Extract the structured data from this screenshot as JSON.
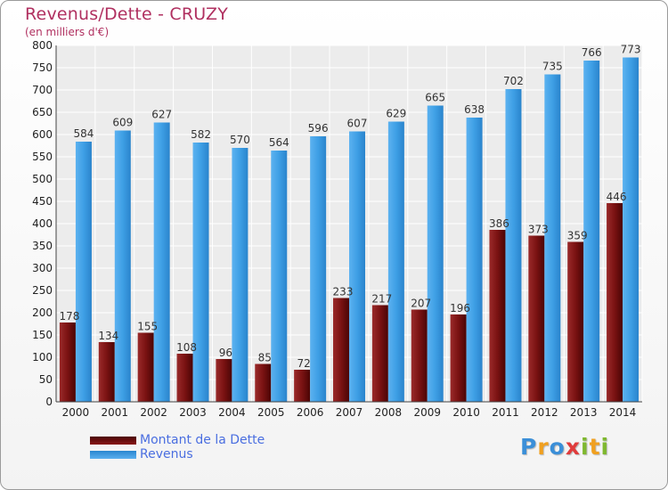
{
  "chart_data": {
    "type": "bar",
    "title": "Revenus/Dette - CRUZY",
    "subtitle": "(en milliers d'€)",
    "categories": [
      "2000",
      "2001",
      "2002",
      "2003",
      "2004",
      "2005",
      "2006",
      "2007",
      "2008",
      "2009",
      "2010",
      "2011",
      "2012",
      "2013",
      "2014"
    ],
    "series": [
      {
        "name": "Montant de la Dette",
        "color": "#7a1010",
        "values": [
          178,
          134,
          155,
          108,
          96,
          85,
          72,
          233,
          217,
          207,
          196,
          386,
          373,
          359,
          446
        ]
      },
      {
        "name": "Revenus",
        "color": "#3d9ee3",
        "values": [
          584,
          609,
          627,
          582,
          570,
          564,
          596,
          607,
          629,
          665,
          638,
          702,
          735,
          766,
          773
        ]
      }
    ],
    "ylim": [
      0,
      800
    ],
    "yticks": [
      0,
      50,
      100,
      150,
      200,
      250,
      300,
      350,
      400,
      450,
      500,
      550,
      600,
      650,
      700,
      750,
      800
    ],
    "grid": true,
    "legend_position": "bottom-left"
  },
  "brand": {
    "text": "Proxiti",
    "letters": [
      {
        "ch": "P",
        "color": "#3b8fd8"
      },
      {
        "ch": "r",
        "color": "#f0a020"
      },
      {
        "ch": "o",
        "color": "#3b8fd8"
      },
      {
        "ch": "x",
        "color": "#e03c3c"
      },
      {
        "ch": "i",
        "color": "#7fb830"
      },
      {
        "ch": "t",
        "color": "#f0a020"
      },
      {
        "ch": "i",
        "color": "#7fb830"
      }
    ]
  }
}
